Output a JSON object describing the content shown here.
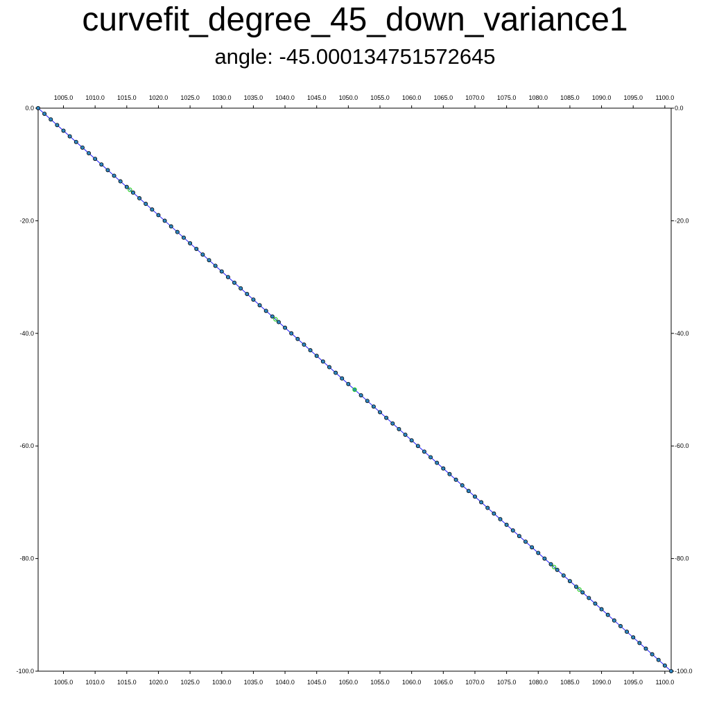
{
  "chart_data": {
    "type": "scatter",
    "title": "curvefit_degree_45_down_variance1",
    "subtitle": "angle: -45.000134751572645",
    "xlabel": "",
    "ylabel": "",
    "xlim": [
      1001.0,
      1101.0
    ],
    "ylim": [
      -100.0,
      0.0
    ],
    "grid": false,
    "x_ticks": [
      "1005.0",
      "1010.0",
      "1015.0",
      "1020.0",
      "1025.0",
      "1030.0",
      "1035.0",
      "1040.0",
      "1045.0",
      "1050.0",
      "1055.0",
      "1060.0",
      "1065.0",
      "1070.0",
      "1075.0",
      "1080.0",
      "1085.0",
      "1090.0",
      "1095.0",
      "1100.0"
    ],
    "y_ticks": [
      "0.0",
      "-20.0",
      "-40.0",
      "-60.0",
      "-80.0",
      "-100.0"
    ],
    "series": [
      {
        "kind": "fit-line",
        "x": [
          1001.0,
          1101.0
        ],
        "y": [
          0.0,
          -100.0
        ]
      },
      {
        "kind": "points",
        "x_start": 1001.0,
        "x_step": 1.0,
        "y_start": 0.0,
        "y_step": -1.0,
        "count": 101,
        "green_x": [
          1015.5,
          1038.5,
          1051.0,
          1082.5,
          1086.5
        ]
      }
    ],
    "colors": {
      "fit_line": "#1a1aff",
      "point_fill": "#2e86c1",
      "point_edge": "#000000",
      "green_point": "#22cc22"
    }
  }
}
